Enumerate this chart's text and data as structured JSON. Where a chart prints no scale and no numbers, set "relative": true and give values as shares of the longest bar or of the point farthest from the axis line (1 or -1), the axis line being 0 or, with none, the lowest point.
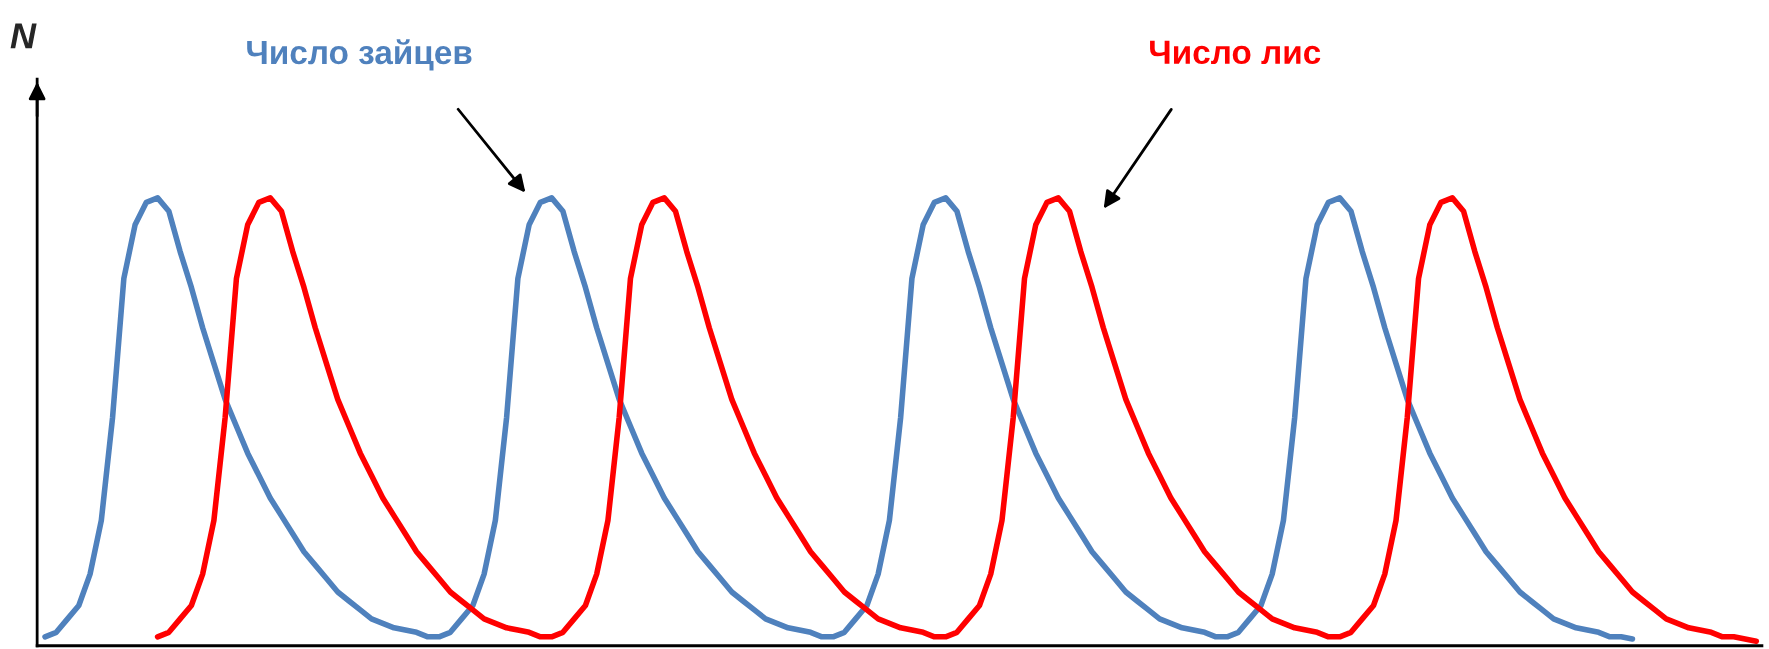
{
  "chart_data": {
    "type": "line",
    "relative": true,
    "ylabel": "N",
    "categories": [
      null,
      null,
      null,
      null,
      null,
      null,
      null,
      null,
      null,
      null,
      null,
      null,
      null,
      null,
      null,
      null,
      null,
      null,
      null,
      null,
      null,
      null,
      null,
      null,
      null,
      null,
      null,
      null,
      null,
      null,
      null,
      null,
      null,
      null,
      null,
      null,
      null,
      null,
      null,
      null,
      null,
      null,
      null,
      null,
      null,
      null,
      null,
      null,
      null,
      null,
      null,
      null,
      null,
      null,
      null,
      null,
      null,
      null,
      null,
      null,
      null,
      null,
      null,
      null,
      null,
      null,
      null,
      null,
      null,
      null,
      null,
      null,
      null,
      null,
      null,
      null,
      null,
      null,
      null,
      null,
      null,
      null,
      null,
      null,
      null,
      null,
      null,
      null,
      null,
      null,
      null,
      null,
      null,
      null,
      null,
      null,
      null,
      null,
      null,
      null,
      null,
      null,
      null,
      null,
      null,
      null,
      null,
      null,
      null,
      null,
      null,
      null,
      null,
      null,
      null,
      null,
      null,
      null,
      null,
      null,
      null,
      null,
      null,
      null,
      null,
      null,
      null,
      null,
      null,
      null,
      null,
      null,
      null,
      null,
      null,
      null,
      null,
      null,
      null,
      null,
      null,
      null,
      null,
      null,
      null,
      null,
      null,
      null,
      null,
      null,
      null,
      null,
      null
    ],
    "series": [
      {
        "name": "Число зайцев",
        "color": "#4f81bd",
        "values": [
          0.02,
          0.03,
          0.06,
          0.09,
          0.16,
          0.28,
          0.51,
          0.82,
          0.94,
          0.99,
          1,
          0.97,
          0.88,
          0.8,
          0.71,
          0.63,
          0.55,
          0.49,
          0.43,
          0.38,
          0.33,
          0.29,
          0.25,
          0.21,
          0.18,
          0.15,
          0.12,
          0.1,
          0.08,
          0.06,
          0.05,
          0.04,
          0.035,
          0.03,
          0.02,
          0.02,
          0.03,
          0.06,
          0.09,
          0.16,
          0.28,
          0.51,
          0.82,
          0.94,
          0.99,
          1,
          0.97,
          0.88,
          0.8,
          0.71,
          0.63,
          0.55,
          0.49,
          0.43,
          0.38,
          0.33,
          0.29,
          0.25,
          0.21,
          0.18,
          0.15,
          0.12,
          0.1,
          0.08,
          0.06,
          0.05,
          0.04,
          0.035,
          0.03,
          0.02,
          0.02,
          0.03,
          0.06,
          0.09,
          0.16,
          0.28,
          0.51,
          0.82,
          0.94,
          0.99,
          1,
          0.97,
          0.88,
          0.8,
          0.71,
          0.63,
          0.55,
          0.49,
          0.43,
          0.38,
          0.33,
          0.29,
          0.25,
          0.21,
          0.18,
          0.15,
          0.12,
          0.1,
          0.08,
          0.06,
          0.05,
          0.04,
          0.035,
          0.03,
          0.02,
          0.02,
          0.03,
          0.06,
          0.09,
          0.16,
          0.28,
          0.51,
          0.82,
          0.94,
          0.99,
          1,
          0.97,
          0.88,
          0.8,
          0.71,
          0.63,
          0.55,
          0.49,
          0.43,
          0.38,
          0.33,
          0.29,
          0.25,
          0.21,
          0.18,
          0.15,
          0.12,
          0.1,
          0.08,
          0.06,
          0.05,
          0.04,
          0.035,
          0.03,
          0.02,
          0.02,
          0.015,
          null,
          null,
          null,
          null,
          null,
          null,
          null,
          null,
          null,
          null,
          null
        ]
      },
      {
        "name": "Число лис",
        "color": "#ff0000",
        "values": [
          null,
          null,
          null,
          null,
          null,
          null,
          null,
          null,
          null,
          null,
          0.02,
          0.03,
          0.06,
          0.09,
          0.16,
          0.28,
          0.51,
          0.82,
          0.94,
          0.99,
          1,
          0.97,
          0.88,
          0.8,
          0.71,
          0.63,
          0.55,
          0.49,
          0.43,
          0.38,
          0.33,
          0.29,
          0.25,
          0.21,
          0.18,
          0.15,
          0.12,
          0.1,
          0.08,
          0.06,
          0.05,
          0.04,
          0.035,
          0.03,
          0.02,
          0.02,
          0.03,
          0.06,
          0.09,
          0.16,
          0.28,
          0.51,
          0.82,
          0.94,
          0.99,
          1,
          0.97,
          0.88,
          0.8,
          0.71,
          0.63,
          0.55,
          0.49,
          0.43,
          0.38,
          0.33,
          0.29,
          0.25,
          0.21,
          0.18,
          0.15,
          0.12,
          0.1,
          0.08,
          0.06,
          0.05,
          0.04,
          0.035,
          0.03,
          0.02,
          0.02,
          0.03,
          0.06,
          0.09,
          0.16,
          0.28,
          0.51,
          0.82,
          0.94,
          0.99,
          1,
          0.97,
          0.88,
          0.8,
          0.71,
          0.63,
          0.55,
          0.49,
          0.43,
          0.38,
          0.33,
          0.29,
          0.25,
          0.21,
          0.18,
          0.15,
          0.12,
          0.1,
          0.08,
          0.06,
          0.05,
          0.04,
          0.035,
          0.03,
          0.02,
          0.02,
          0.03,
          0.06,
          0.09,
          0.16,
          0.28,
          0.51,
          0.82,
          0.94,
          0.99,
          1,
          0.97,
          0.88,
          0.8,
          0.71,
          0.63,
          0.55,
          0.49,
          0.43,
          0.38,
          0.33,
          0.29,
          0.25,
          0.21,
          0.18,
          0.15,
          0.12,
          0.1,
          0.08,
          0.06,
          0.05,
          0.04,
          0.035,
          0.03,
          0.02,
          0.02,
          0.015,
          0.01
        ]
      }
    ]
  }
}
